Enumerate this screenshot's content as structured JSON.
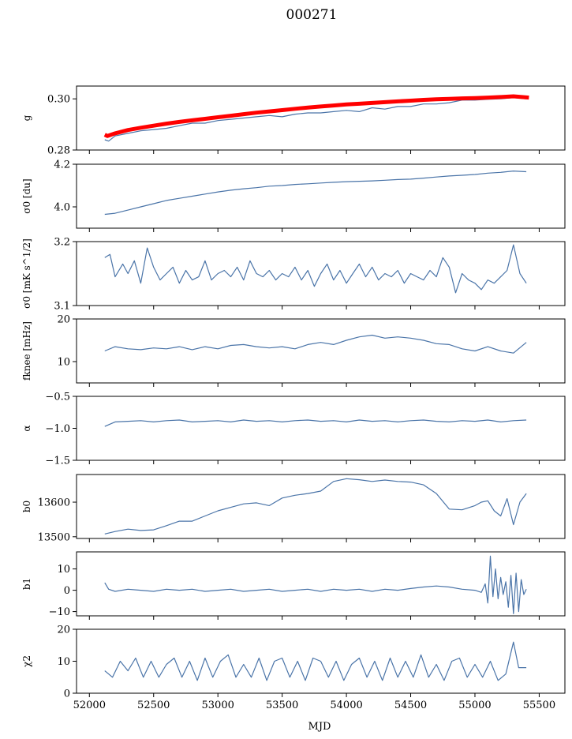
{
  "title": "000271",
  "xlabel": "MJD",
  "colors": {
    "series": "#4a74a8",
    "model": "#ff0000",
    "axis": "#000000"
  },
  "chart_data": [
    {
      "type": "line",
      "ylabel": "g",
      "xlim": [
        51900,
        55700
      ],
      "ylim": [
        0.28,
        0.305
      ],
      "yticks": [
        0.28,
        0.3
      ],
      "ytick_labels": [
        "0.28",
        "0.30"
      ],
      "series": [
        {
          "x": [
            52120,
            52150,
            52200,
            52300,
            52400,
            52500,
            52600,
            52700,
            52800,
            52900,
            53000,
            53100,
            53200,
            53300,
            53400,
            53500,
            53600,
            53700,
            53800,
            53900,
            54000,
            54100,
            54200,
            54300,
            54400,
            54500,
            54600,
            54700,
            54800,
            54900,
            55000,
            55100,
            55200,
            55300,
            55400
          ],
          "y": [
            0.284,
            0.2835,
            0.2855,
            0.2865,
            0.2875,
            0.288,
            0.2885,
            0.2895,
            0.2905,
            0.2905,
            0.2915,
            0.292,
            0.2925,
            0.293,
            0.2935,
            0.293,
            0.294,
            0.2945,
            0.2945,
            0.295,
            0.2955,
            0.295,
            0.2965,
            0.296,
            0.297,
            0.297,
            0.298,
            0.298,
            0.2985,
            0.2995,
            0.2995,
            0.2998,
            0.3,
            0.3005,
            0.3
          ]
        },
        {
          "x": [
            52120,
            52140,
            52200,
            52300,
            52400,
            52500,
            52600,
            52700,
            52800,
            52900,
            53000,
            53100,
            53200,
            53300,
            53400,
            53500,
            53600,
            53700,
            53800,
            53900,
            54000,
            54100,
            54200,
            54300,
            54400,
            54500,
            54600,
            54700,
            54800,
            54900,
            55000,
            55100,
            55200,
            55300,
            55420
          ],
          "y": [
            0.286,
            0.2855,
            0.2865,
            0.2878,
            0.2887,
            0.2895,
            0.2903,
            0.291,
            0.2916,
            0.2922,
            0.2928,
            0.2934,
            0.294,
            0.2946,
            0.2951,
            0.2956,
            0.2961,
            0.2966,
            0.297,
            0.2974,
            0.2978,
            0.2981,
            0.2984,
            0.2987,
            0.299,
            0.2993,
            0.2996,
            0.2998,
            0.3,
            0.3002,
            0.3003,
            0.3005,
            0.3007,
            0.301,
            0.3005
          ]
        }
      ]
    },
    {
      "type": "line",
      "ylabel": "σ0 [du]",
      "xlim": [
        51900,
        55700
      ],
      "ylim": [
        3.9,
        4.2
      ],
      "yticks": [
        4.0,
        4.2
      ],
      "ytick_labels": [
        "4.0",
        "4.2"
      ],
      "series": [
        {
          "x": [
            52120,
            52200,
            52300,
            52400,
            52500,
            52600,
            52700,
            52800,
            52900,
            53000,
            53100,
            53200,
            53300,
            53400,
            53500,
            53600,
            53700,
            53800,
            53900,
            54000,
            54100,
            54200,
            54300,
            54400,
            54500,
            54600,
            54700,
            54800,
            54900,
            55000,
            55100,
            55200,
            55300,
            55400
          ],
          "y": [
            3.965,
            3.97,
            3.985,
            4.0,
            4.015,
            4.03,
            4.04,
            4.05,
            4.06,
            4.07,
            4.078,
            4.085,
            4.09,
            4.097,
            4.1,
            4.105,
            4.108,
            4.112,
            4.115,
            4.118,
            4.12,
            4.122,
            4.125,
            4.128,
            4.13,
            4.135,
            4.14,
            4.145,
            4.148,
            4.152,
            4.158,
            4.162,
            4.168,
            4.165
          ]
        }
      ]
    },
    {
      "type": "line",
      "ylabel": "σ0 [mK s^1/2]",
      "xlim": [
        51900,
        55700
      ],
      "ylim": [
        3.1,
        3.2
      ],
      "yticks": [
        3.1,
        3.2
      ],
      "ytick_labels": [
        "3.1",
        "3.2"
      ],
      "series": [
        {
          "x": [
            52120,
            52160,
            52200,
            52260,
            52300,
            52350,
            52400,
            52450,
            52500,
            52550,
            52600,
            52650,
            52700,
            52750,
            52800,
            52850,
            52900,
            52950,
            53000,
            53050,
            53100,
            53150,
            53200,
            53250,
            53300,
            53350,
            53400,
            53450,
            53500,
            53550,
            53600,
            53650,
            53700,
            53750,
            53800,
            53850,
            53900,
            53950,
            54000,
            54050,
            54100,
            54150,
            54200,
            54250,
            54300,
            54350,
            54400,
            54450,
            54500,
            54550,
            54600,
            54650,
            54700,
            54750,
            54800,
            54850,
            54900,
            54950,
            55000,
            55050,
            55100,
            55150,
            55200,
            55250,
            55300,
            55350,
            55400
          ],
          "y": [
            3.175,
            3.18,
            3.145,
            3.165,
            3.15,
            3.17,
            3.135,
            3.19,
            3.16,
            3.14,
            3.15,
            3.16,
            3.135,
            3.155,
            3.14,
            3.145,
            3.17,
            3.14,
            3.15,
            3.155,
            3.145,
            3.16,
            3.14,
            3.17,
            3.15,
            3.145,
            3.155,
            3.14,
            3.15,
            3.145,
            3.16,
            3.14,
            3.155,
            3.13,
            3.15,
            3.165,
            3.14,
            3.155,
            3.135,
            3.15,
            3.165,
            3.145,
            3.16,
            3.14,
            3.15,
            3.145,
            3.155,
            3.135,
            3.15,
            3.145,
            3.14,
            3.155,
            3.145,
            3.175,
            3.16,
            3.12,
            3.15,
            3.14,
            3.135,
            3.125,
            3.14,
            3.135,
            3.145,
            3.155,
            3.195,
            3.15,
            3.135
          ]
        }
      ]
    },
    {
      "type": "line",
      "ylabel": "fknee [mHz]",
      "xlim": [
        51900,
        55700
      ],
      "ylim": [
        5,
        20
      ],
      "yticks": [
        10,
        20
      ],
      "ytick_labels": [
        "10",
        "20"
      ],
      "series": [
        {
          "x": [
            52120,
            52200,
            52300,
            52400,
            52500,
            52600,
            52700,
            52800,
            52900,
            53000,
            53100,
            53200,
            53300,
            53400,
            53500,
            53600,
            53700,
            53800,
            53900,
            54000,
            54100,
            54200,
            54300,
            54400,
            54500,
            54600,
            54700,
            54800,
            54900,
            55000,
            55100,
            55200,
            55300,
            55400
          ],
          "y": [
            12.5,
            13.5,
            13.0,
            12.8,
            13.2,
            13.0,
            13.5,
            12.8,
            13.5,
            13.0,
            13.8,
            14.0,
            13.5,
            13.2,
            13.5,
            13.0,
            14.0,
            14.5,
            14.0,
            15.0,
            15.8,
            16.2,
            15.5,
            15.8,
            15.5,
            15.0,
            14.2,
            14.0,
            13.0,
            12.5,
            13.5,
            12.5,
            12.0,
            14.5
          ]
        }
      ]
    },
    {
      "type": "line",
      "ylabel": "α",
      "xlim": [
        51900,
        55700
      ],
      "ylim": [
        -1.5,
        -0.5
      ],
      "yticks": [
        -1.5,
        -1.0,
        -0.5
      ],
      "ytick_labels": [
        "−1.5",
        "−1.0",
        "−0.5"
      ],
      "series": [
        {
          "x": [
            52120,
            52200,
            52300,
            52400,
            52500,
            52600,
            52700,
            52800,
            52900,
            53000,
            53100,
            53200,
            53300,
            53400,
            53500,
            53600,
            53700,
            53800,
            53900,
            54000,
            54100,
            54200,
            54300,
            54400,
            54500,
            54600,
            54700,
            54800,
            54900,
            55000,
            55100,
            55200,
            55300,
            55400
          ],
          "y": [
            -0.97,
            -0.9,
            -0.89,
            -0.88,
            -0.9,
            -0.88,
            -0.87,
            -0.9,
            -0.89,
            -0.88,
            -0.9,
            -0.87,
            -0.89,
            -0.88,
            -0.9,
            -0.88,
            -0.87,
            -0.89,
            -0.88,
            -0.9,
            -0.87,
            -0.89,
            -0.88,
            -0.9,
            -0.88,
            -0.87,
            -0.89,
            -0.9,
            -0.88,
            -0.89,
            -0.87,
            -0.9,
            -0.88,
            -0.87
          ]
        }
      ]
    },
    {
      "type": "line",
      "ylabel": "b0",
      "xlim": [
        51900,
        55700
      ],
      "ylim": [
        13495,
        13680
      ],
      "yticks": [
        13500,
        13600
      ],
      "ytick_labels": [
        "13500",
        "13600"
      ],
      "series": [
        {
          "x": [
            52120,
            52200,
            52300,
            52400,
            52500,
            52600,
            52700,
            52800,
            52900,
            53000,
            53100,
            53200,
            53300,
            53400,
            53500,
            53600,
            53700,
            53800,
            53900,
            54000,
            54100,
            54200,
            54300,
            54400,
            54500,
            54600,
            54700,
            54800,
            54900,
            55000,
            55050,
            55100,
            55150,
            55200,
            55250,
            55300,
            55350,
            55400
          ],
          "y": [
            13508,
            13515,
            13522,
            13518,
            13520,
            13532,
            13545,
            13545,
            13560,
            13575,
            13585,
            13595,
            13598,
            13590,
            13612,
            13620,
            13625,
            13632,
            13660,
            13668,
            13665,
            13660,
            13664,
            13660,
            13658,
            13650,
            13625,
            13580,
            13578,
            13590,
            13600,
            13604,
            13575,
            13560,
            13610,
            13535,
            13600,
            13625
          ]
        }
      ]
    },
    {
      "type": "line",
      "ylabel": "b1",
      "xlim": [
        51900,
        55700
      ],
      "ylim": [
        -12,
        18
      ],
      "yticks": [
        -10,
        0,
        10
      ],
      "ytick_labels": [
        "−10",
        "0",
        "10"
      ],
      "series": [
        {
          "x": [
            52120,
            52150,
            52200,
            52300,
            52400,
            52500,
            52600,
            52700,
            52800,
            52900,
            53000,
            53100,
            53200,
            53300,
            53400,
            53500,
            53600,
            53700,
            53800,
            53900,
            54000,
            54100,
            54200,
            54300,
            54400,
            54500,
            54600,
            54700,
            54800,
            54900,
            55000,
            55050,
            55080,
            55100,
            55120,
            55140,
            55160,
            55180,
            55200,
            55220,
            55240,
            55260,
            55280,
            55300,
            55320,
            55340,
            55360,
            55380,
            55400
          ],
          "y": [
            3.5,
            0.5,
            -0.5,
            0.5,
            0,
            -0.5,
            0.5,
            0,
            0.5,
            -0.5,
            0,
            0.5,
            -0.5,
            0,
            0.5,
            -0.5,
            0,
            0.5,
            -0.5,
            0.5,
            0,
            0.5,
            -0.5,
            0.5,
            0,
            0.8,
            1.5,
            2.0,
            1.5,
            0.5,
            0,
            -1,
            3,
            -6,
            16,
            -3,
            10,
            -4,
            6,
            -2,
            4,
            -8,
            7,
            -11,
            8,
            -10,
            5,
            -2,
            0.5
          ]
        }
      ]
    },
    {
      "type": "line",
      "ylabel": "χ2",
      "xlabel": "MJD",
      "xlim": [
        51900,
        55700
      ],
      "ylim": [
        0,
        20
      ],
      "yticks": [
        0,
        10,
        20
      ],
      "ytick_labels": [
        "0",
        "10",
        "20"
      ],
      "xticks": [
        52000,
        52500,
        53000,
        53500,
        54000,
        54500,
        55000,
        55500
      ],
      "xtick_labels": [
        "52000",
        "52500",
        "53000",
        "53500",
        "54000",
        "54500",
        "55000",
        "55500"
      ],
      "series": [
        {
          "x": [
            52120,
            52180,
            52240,
            52300,
            52360,
            52420,
            52480,
            52540,
            52600,
            52660,
            52720,
            52780,
            52840,
            52900,
            52960,
            53020,
            53080,
            53140,
            53200,
            53260,
            53320,
            53380,
            53440,
            53500,
            53560,
            53620,
            53680,
            53740,
            53800,
            53860,
            53920,
            53980,
            54040,
            54100,
            54160,
            54220,
            54280,
            54340,
            54400,
            54460,
            54520,
            54580,
            54640,
            54700,
            54760,
            54820,
            54880,
            54940,
            55000,
            55060,
            55120,
            55180,
            55240,
            55300,
            55340,
            55400
          ],
          "y": [
            7,
            5,
            10,
            7,
            11,
            5,
            10,
            5,
            9,
            11,
            5,
            10,
            4,
            11,
            5,
            10,
            12,
            5,
            9,
            5,
            11,
            4,
            10,
            11,
            5,
            10,
            4,
            11,
            10,
            5,
            10,
            4,
            9,
            11,
            5,
            10,
            4,
            11,
            5,
            10,
            5,
            12,
            5,
            9,
            4,
            10,
            11,
            5,
            9,
            5,
            10,
            4,
            6,
            16,
            8,
            8
          ]
        }
      ]
    }
  ]
}
